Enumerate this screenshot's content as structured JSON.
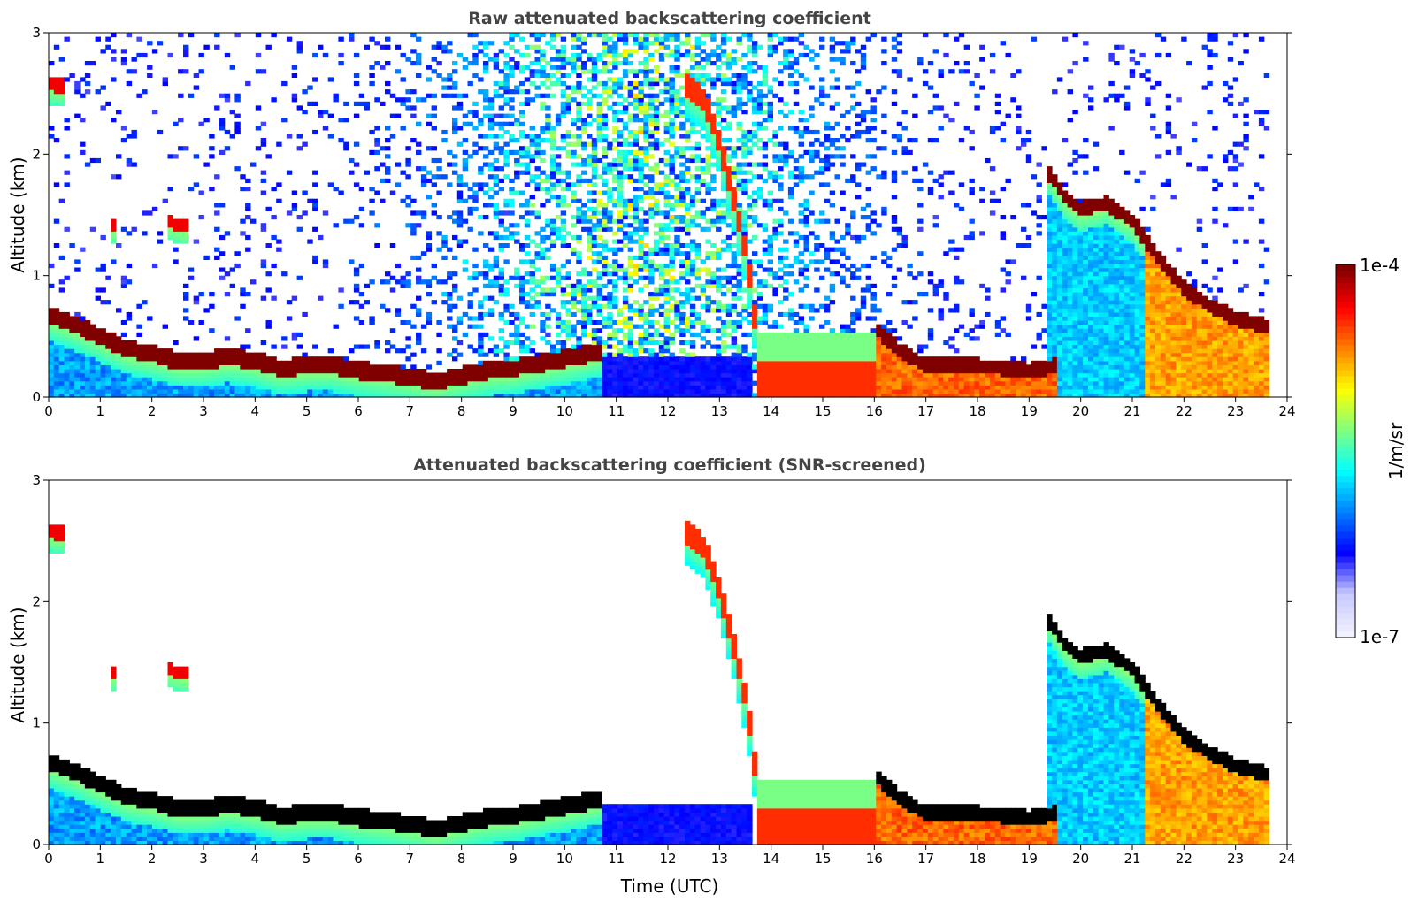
{
  "chart_data": [
    {
      "type": "heatmap",
      "title": "Raw attenuated backscattering coefficient",
      "xlabel": "",
      "ylabel": "Altitude (km)",
      "xlim": [
        0,
        24
      ],
      "ylim": [
        0,
        3
      ],
      "xticks": [
        0,
        1,
        2,
        3,
        4,
        5,
        6,
        7,
        8,
        9,
        10,
        11,
        12,
        13,
        14,
        15,
        16,
        17,
        18,
        19,
        20,
        21,
        22,
        23,
        24
      ],
      "yticks": [
        0,
        1,
        2,
        3
      ],
      "data_end_time": 23.65,
      "screened": false,
      "layers": [
        {
          "name": "boundary layer top",
          "points": [
            [
              0,
              0.68
            ],
            [
              0.5,
              0.6
            ],
            [
              1,
              0.5
            ],
            [
              1.5,
              0.4
            ],
            [
              2,
              0.36
            ],
            [
              2.5,
              0.3
            ],
            [
              3,
              0.3
            ],
            [
              3.5,
              0.33
            ],
            [
              4,
              0.3
            ],
            [
              4.5,
              0.24
            ],
            [
              5,
              0.26
            ],
            [
              5.5,
              0.26
            ],
            [
              6,
              0.22
            ],
            [
              6.5,
              0.2
            ],
            [
              7,
              0.17
            ],
            [
              7.5,
              0.13
            ],
            [
              8,
              0.18
            ],
            [
              8.5,
              0.22
            ],
            [
              9,
              0.24
            ],
            [
              9.5,
              0.28
            ],
            [
              10,
              0.32
            ],
            [
              10.7,
              0.38
            ]
          ],
          "level": 1.0,
          "thickness": 0.07
        },
        {
          "name": "evening boundary layer",
          "points": [
            [
              16,
              0.58
            ],
            [
              16.5,
              0.38
            ],
            [
              17,
              0.26
            ],
            [
              17.5,
              0.26
            ],
            [
              18,
              0.26
            ],
            [
              18.5,
              0.24
            ],
            [
              19,
              0.22
            ],
            [
              19.5,
              0.26
            ]
          ],
          "level": 1.0,
          "thickness": 0.06
        },
        {
          "name": "fall streak",
          "points": [
            [
              12.3,
              2.6
            ],
            [
              12.7,
              2.45
            ],
            [
              13.0,
              2.1
            ],
            [
              13.3,
              1.6
            ],
            [
              13.55,
              1.1
            ],
            [
              13.7,
              0.6
            ]
          ],
          "level": 0.85,
          "thickness": 0.09
        },
        {
          "name": "cloud layer 19-23h",
          "points": [
            [
              19.3,
              1.9
            ],
            [
              19.7,
              1.65
            ],
            [
              20,
              1.55
            ],
            [
              20.5,
              1.6
            ],
            [
              21,
              1.45
            ],
            [
              21.5,
              1.15
            ],
            [
              22,
              0.9
            ],
            [
              22.5,
              0.75
            ],
            [
              23,
              0.65
            ],
            [
              23.6,
              0.58
            ]
          ],
          "level": 1.0,
          "thickness": 0.06
        },
        {
          "name": "low cloud 0-0.5h",
          "points": [
            [
              0.05,
              2.58
            ],
            [
              0.35,
              2.56
            ]
          ],
          "level": 0.9,
          "thickness": 0.06
        },
        {
          "name": "cloud 1.3h",
          "points": [
            [
              1.25,
              1.42
            ],
            [
              1.35,
              1.42
            ]
          ],
          "level": 0.9,
          "thickness": 0.05
        },
        {
          "name": "cloud 2.6h",
          "points": [
            [
              2.3,
              1.45
            ],
            [
              2.75,
              1.4
            ]
          ],
          "level": 0.9,
          "thickness": 0.05
        }
      ]
    },
    {
      "type": "heatmap",
      "title": "Attenuated backscattering coefficient (SNR-screened)",
      "xlabel": "Time (UTC)",
      "ylabel": "Altitude (km)",
      "xlim": [
        0,
        24
      ],
      "ylim": [
        0,
        3
      ],
      "xticks": [
        0,
        1,
        2,
        3,
        4,
        5,
        6,
        7,
        8,
        9,
        10,
        11,
        12,
        13,
        14,
        15,
        16,
        17,
        18,
        19,
        20,
        21,
        22,
        23,
        24
      ],
      "yticks": [
        0,
        1,
        2,
        3
      ],
      "data_end_time": 23.65,
      "screened": true
    }
  ],
  "colorbar": {
    "label": "1/m/sr",
    "min_label": "1e-7",
    "max_label": "1e-4",
    "colormap": "jet",
    "colors": [
      "#f0f0ff",
      "#c8c8ff",
      "#0000ff",
      "#0080ff",
      "#00ffff",
      "#80ff80",
      "#ffff00",
      "#ff8000",
      "#ff0000",
      "#800000"
    ]
  }
}
